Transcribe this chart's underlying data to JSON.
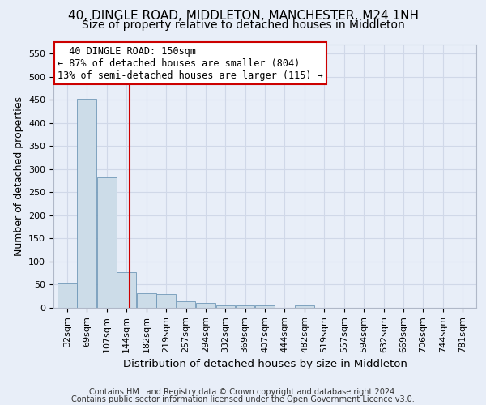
{
  "title": "40, DINGLE ROAD, MIDDLETON, MANCHESTER, M24 1NH",
  "subtitle": "Size of property relative to detached houses in Middleton",
  "xlabel": "Distribution of detached houses by size in Middleton",
  "ylabel": "Number of detached properties",
  "footer_line1": "Contains HM Land Registry data © Crown copyright and database right 2024.",
  "footer_line2": "Contains public sector information licensed under the Open Government Licence v3.0.",
  "annotation_line1": "40 DINGLE ROAD: 150sqm",
  "annotation_line2": "← 87% of detached houses are smaller (804)",
  "annotation_line3": "13% of semi-detached houses are larger (115) →",
  "bar_color": "#ccdce8",
  "bar_edge_color": "#7098b8",
  "vline_color": "#cc0000",
  "vline_x": 150,
  "annotation_box_color": "#cc0000",
  "background_color": "#e8eef8",
  "categories": [
    32,
    69,
    107,
    144,
    182,
    219,
    257,
    294,
    332,
    369,
    407,
    444,
    482,
    519,
    557,
    594,
    632,
    669,
    706,
    744,
    781
  ],
  "bin_width": 37,
  "values": [
    52,
    452,
    283,
    77,
    31,
    30,
    14,
    10,
    6,
    5,
    5,
    0,
    5,
    0,
    0,
    0,
    0,
    0,
    0,
    0,
    0
  ],
  "ylim": [
    0,
    570
  ],
  "yticks": [
    0,
    50,
    100,
    150,
    200,
    250,
    300,
    350,
    400,
    450,
    500,
    550
  ],
  "grid_color": "#d0d8e8",
  "title_fontsize": 11,
  "subtitle_fontsize": 10,
  "axis_label_fontsize": 9,
  "tick_fontsize": 8,
  "footer_fontsize": 7,
  "annotation_fontsize": 8.5
}
